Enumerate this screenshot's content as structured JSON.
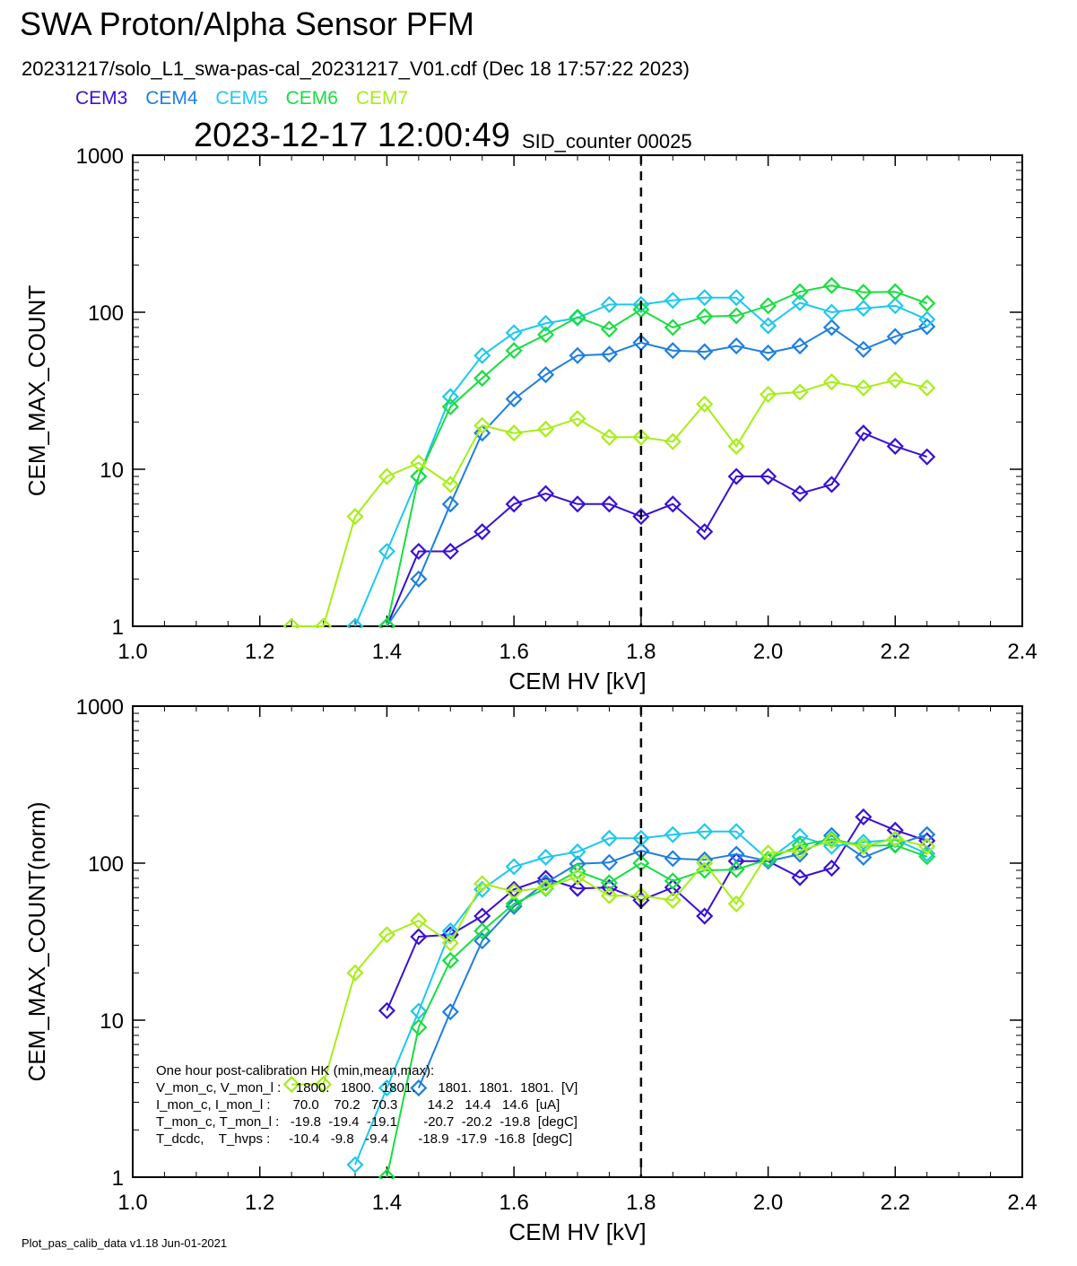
{
  "header": {
    "title": "SWA Proton/Alpha Sensor PFM",
    "subtitle": "20231217/solo_L1_swa-pas-cal_20231217_V01.cdf  (Dec 18 17:57:22 2023)",
    "timestamp": "2023-12-17 12:00:49",
    "sid_label": "SID_counter 00025"
  },
  "legend": [
    {
      "name": "CEM3",
      "color": "#3a10d6"
    },
    {
      "name": "CEM4",
      "color": "#1f7fe0"
    },
    {
      "name": "CEM5",
      "color": "#1ec8ee"
    },
    {
      "name": "CEM6",
      "color": "#18de40"
    },
    {
      "name": "CEM7",
      "color": "#a6ee18"
    }
  ],
  "hk": {
    "title": "One hour post-calibration HK (min,mean,max):",
    "rows": [
      "V_mon_c, V_mon_l :    1800.   1800.  1801.      1801.  1801.  1801.  [V]",
      "I_mon_c, I_mon_l :      70.0    70.2   70.3        14.2   14.4   14.6  [uA]",
      "T_mon_c, T_mon_l :   -19.8  -19.4  -19.1       -20.7  -20.2  -19.8  [degC]",
      "T_dcdc,    T_hvps :     -10.4   -9.8   -9.4        -18.9  -17.9  -16.8  [degC]"
    ]
  },
  "footer": "Plot_pas_calib_data v1.18 Jun-01-2021",
  "chart_data": [
    {
      "type": "line",
      "ylabel": "CEM_MAX_COUNT",
      "xlabel": "CEM HV [kV]",
      "xlim": [
        1.0,
        2.4
      ],
      "ylim": [
        1,
        1000
      ],
      "yscale": "log",
      "x_ticks": [
        "1.0",
        "1.2",
        "1.4",
        "1.6",
        "1.8",
        "2.0",
        "2.2",
        "2.4"
      ],
      "y_ticks": [
        "1",
        "10",
        "100",
        "1000"
      ],
      "vline": 1.8,
      "series": [
        {
          "name": "CEM3",
          "color": "#3a10d6",
          "x": [
            1.4,
            1.45,
            1.5,
            1.55,
            1.6,
            1.65,
            1.7,
            1.75,
            1.8,
            1.85,
            1.9,
            1.95,
            2.0,
            2.05,
            2.1,
            2.15,
            2.2,
            2.25
          ],
          "y": [
            1,
            3,
            3,
            4,
            6,
            7,
            6,
            6,
            5,
            6,
            4,
            9,
            9,
            7,
            8,
            17,
            14,
            12
          ]
        },
        {
          "name": "CEM4",
          "color": "#1f7fe0",
          "x": [
            1.4,
            1.45,
            1.5,
            1.55,
            1.6,
            1.65,
            1.7,
            1.75,
            1.8,
            1.85,
            1.9,
            1.95,
            2.0,
            2.05,
            2.1,
            2.15,
            2.2,
            2.25
          ],
          "y": [
            1,
            2,
            6,
            17,
            28,
            40,
            53,
            54,
            64,
            57,
            56,
            61,
            55,
            61,
            80,
            58,
            70,
            81
          ]
        },
        {
          "name": "CEM5",
          "color": "#1ec8ee",
          "x": [
            1.35,
            1.4,
            1.45,
            1.5,
            1.55,
            1.6,
            1.65,
            1.7,
            1.75,
            1.8,
            1.85,
            1.9,
            1.95,
            2.0,
            2.05,
            2.1,
            2.15,
            2.2,
            2.25
          ],
          "y": [
            1,
            3,
            9,
            29,
            53,
            74,
            85,
            92,
            112,
            112,
            119,
            124,
            124,
            82,
            115,
            100,
            106,
            110,
            90
          ]
        },
        {
          "name": "CEM6",
          "color": "#18de40",
          "x": [
            1.4,
            1.45,
            1.5,
            1.55,
            1.6,
            1.65,
            1.7,
            1.75,
            1.8,
            1.85,
            1.9,
            1.95,
            2.0,
            2.05,
            2.1,
            2.15,
            2.2,
            2.25
          ],
          "y": [
            1,
            9,
            25,
            38,
            57,
            72,
            93,
            78,
            104,
            80,
            94,
            95,
            110,
            135,
            148,
            134,
            135,
            114
          ]
        },
        {
          "name": "CEM7",
          "color": "#a6ee18",
          "x": [
            1.25,
            1.3,
            1.35,
            1.4,
            1.45,
            1.5,
            1.55,
            1.6,
            1.65,
            1.7,
            1.75,
            1.8,
            1.85,
            1.9,
            1.95,
            2.0,
            2.05,
            2.1,
            2.15,
            2.2,
            2.25
          ],
          "y": [
            1,
            1,
            5,
            9,
            11,
            8,
            19,
            17,
            18,
            21,
            16,
            16,
            15,
            26,
            14,
            30,
            31,
            36,
            33,
            37,
            33
          ]
        }
      ]
    },
    {
      "type": "line",
      "ylabel": "CEM_MAX_COUNT(norm)",
      "xlabel": "CEM HV [kV]",
      "xlim": [
        1.0,
        2.4
      ],
      "ylim": [
        1,
        1000
      ],
      "yscale": "log",
      "x_ticks": [
        "1.0",
        "1.2",
        "1.4",
        "1.6",
        "1.8",
        "2.0",
        "2.2",
        "2.4"
      ],
      "y_ticks": [
        "1",
        "10",
        "100",
        "1000"
      ],
      "vline": 1.8,
      "series": [
        {
          "name": "CEM3",
          "color": "#3a10d6",
          "x": [
            1.4,
            1.45,
            1.5,
            1.55,
            1.6,
            1.65,
            1.7,
            1.75,
            1.8,
            1.85,
            1.9,
            1.95,
            2.0,
            2.05,
            2.1,
            2.15,
            2.2,
            2.25
          ],
          "y": [
            11.5,
            34,
            35,
            46,
            68,
            80,
            69,
            70,
            58,
            70,
            46,
            103,
            103,
            81,
            93,
            197,
            162,
            139
          ]
        },
        {
          "name": "CEM4",
          "color": "#1f7fe0",
          "x": [
            1.45,
            1.5,
            1.55,
            1.6,
            1.65,
            1.7,
            1.75,
            1.8,
            1.85,
            1.9,
            1.95,
            2.0,
            2.05,
            2.1,
            2.15,
            2.2,
            2.25
          ],
          "y": [
            3.7,
            11.3,
            32,
            53,
            75,
            99,
            101,
            120,
            107,
            105,
            114,
            103,
            114,
            150,
            109,
            131,
            152
          ]
        },
        {
          "name": "CEM5",
          "color": "#1ec8ee",
          "x": [
            1.35,
            1.4,
            1.45,
            1.5,
            1.55,
            1.6,
            1.65,
            1.7,
            1.75,
            1.8,
            1.85,
            1.9,
            1.95,
            2.0,
            2.05,
            2.1,
            2.15,
            2.2,
            2.25
          ],
          "y": [
            1.2,
            3.7,
            11.4,
            37,
            68,
            95,
            109,
            118,
            144,
            144,
            152,
            159,
            159,
            105,
            148,
            128,
            136,
            141,
            115
          ]
        },
        {
          "name": "CEM6",
          "color": "#18de40",
          "x": [
            1.4,
            1.45,
            1.5,
            1.55,
            1.6,
            1.65,
            1.7,
            1.75,
            1.8,
            1.85,
            1.9,
            1.95,
            2.0,
            2.05,
            2.1,
            2.15,
            2.2,
            2.25
          ],
          "y": [
            1,
            9,
            24,
            37,
            55,
            69,
            89,
            75,
            100,
            77,
            90,
            91,
            106,
            130,
            142,
            129,
            130,
            110
          ]
        },
        {
          "name": "CEM7",
          "color": "#a6ee18",
          "x": [
            1.25,
            1.3,
            1.35,
            1.4,
            1.45,
            1.5,
            1.55,
            1.6,
            1.65,
            1.7,
            1.75,
            1.8,
            1.85,
            1.9,
            1.95,
            2.0,
            2.05,
            2.1,
            2.15,
            2.2,
            2.25
          ],
          "y": [
            3.9,
            3.9,
            20,
            35,
            43,
            31,
            74,
            66,
            70,
            82,
            62,
            62,
            58,
            100,
            55,
            116,
            120,
            139,
            128,
            143,
            128
          ]
        }
      ]
    }
  ]
}
